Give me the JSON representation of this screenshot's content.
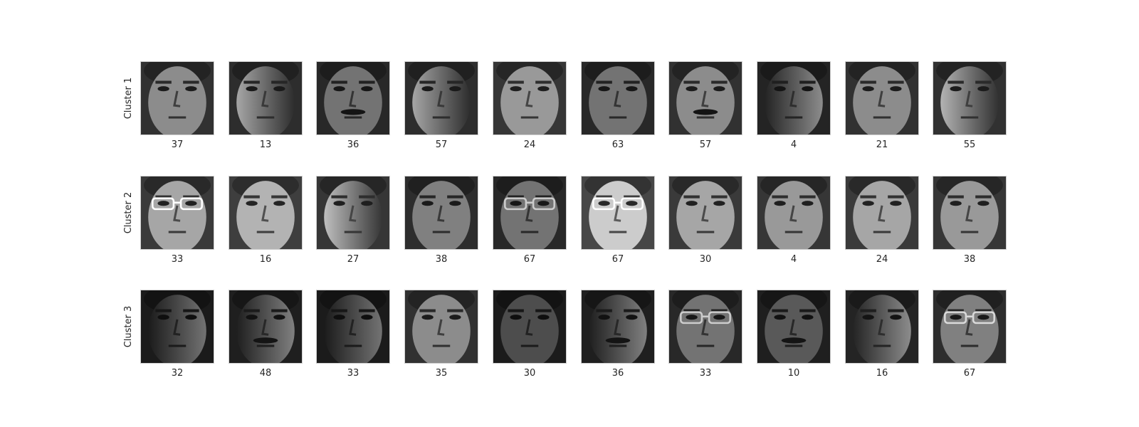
{
  "figure": {
    "rows": [
      {
        "label": "Cluster 1",
        "faces": [
          {
            "caption": "37",
            "lighting": "even",
            "tone": 0.55,
            "glasses": false,
            "mustache": false
          },
          {
            "caption": "13",
            "lighting": "right-dark",
            "tone": 0.5,
            "glasses": false,
            "mustache": false
          },
          {
            "caption": "36",
            "lighting": "even",
            "tone": 0.45,
            "glasses": false,
            "mustache": true
          },
          {
            "caption": "57",
            "lighting": "right-dark",
            "tone": 0.5,
            "glasses": false,
            "mustache": false
          },
          {
            "caption": "24",
            "lighting": "even",
            "tone": 0.6,
            "glasses": false,
            "mustache": false
          },
          {
            "caption": "63",
            "lighting": "even",
            "tone": 0.45,
            "glasses": false,
            "mustache": false
          },
          {
            "caption": "57",
            "lighting": "even",
            "tone": 0.55,
            "glasses": false,
            "mustache": true
          },
          {
            "caption": "4",
            "lighting": "left-dark",
            "tone": 0.4,
            "glasses": false,
            "mustache": false
          },
          {
            "caption": "21",
            "lighting": "even",
            "tone": 0.55,
            "glasses": false,
            "mustache": false
          },
          {
            "caption": "55",
            "lighting": "right-dark",
            "tone": 0.55,
            "glasses": false,
            "mustache": false
          }
        ]
      },
      {
        "label": "Cluster 2",
        "faces": [
          {
            "caption": "33",
            "lighting": "even",
            "tone": 0.65,
            "glasses": true,
            "mustache": false
          },
          {
            "caption": "16",
            "lighting": "even",
            "tone": 0.7,
            "glasses": false,
            "mustache": false
          },
          {
            "caption": "27",
            "lighting": "right-dark",
            "tone": 0.6,
            "glasses": false,
            "mustache": false
          },
          {
            "caption": "38",
            "lighting": "even",
            "tone": 0.5,
            "glasses": false,
            "mustache": false
          },
          {
            "caption": "67",
            "lighting": "even",
            "tone": 0.45,
            "glasses": true,
            "mustache": false
          },
          {
            "caption": "67",
            "lighting": "even",
            "tone": 0.8,
            "glasses": true,
            "mustache": false
          },
          {
            "caption": "30",
            "lighting": "even",
            "tone": 0.65,
            "glasses": false,
            "mustache": false
          },
          {
            "caption": "4",
            "lighting": "even",
            "tone": 0.6,
            "glasses": false,
            "mustache": false
          },
          {
            "caption": "24",
            "lighting": "even",
            "tone": 0.65,
            "glasses": false,
            "mustache": false
          },
          {
            "caption": "38",
            "lighting": "even",
            "tone": 0.6,
            "glasses": false,
            "mustache": false
          }
        ]
      },
      {
        "label": "Cluster 3",
        "faces": [
          {
            "caption": "32",
            "lighting": "left-dark",
            "tone": 0.3,
            "glasses": false,
            "mustache": false
          },
          {
            "caption": "48",
            "lighting": "left-dark",
            "tone": 0.35,
            "glasses": false,
            "mustache": true
          },
          {
            "caption": "33",
            "lighting": "left-dark",
            "tone": 0.3,
            "glasses": false,
            "mustache": false
          },
          {
            "caption": "35",
            "lighting": "even",
            "tone": 0.55,
            "glasses": false,
            "mustache": false
          },
          {
            "caption": "30",
            "lighting": "even",
            "tone": 0.3,
            "glasses": false,
            "mustache": false
          },
          {
            "caption": "36",
            "lighting": "left-dark",
            "tone": 0.35,
            "glasses": false,
            "mustache": true
          },
          {
            "caption": "33",
            "lighting": "even",
            "tone": 0.45,
            "glasses": true,
            "mustache": false
          },
          {
            "caption": "10",
            "lighting": "even",
            "tone": 0.35,
            "glasses": false,
            "mustache": true
          },
          {
            "caption": "16",
            "lighting": "left-dark",
            "tone": 0.4,
            "glasses": false,
            "mustache": false
          },
          {
            "caption": "67",
            "lighting": "even",
            "tone": 0.5,
            "glasses": true,
            "mustache": false
          }
        ]
      }
    ]
  }
}
